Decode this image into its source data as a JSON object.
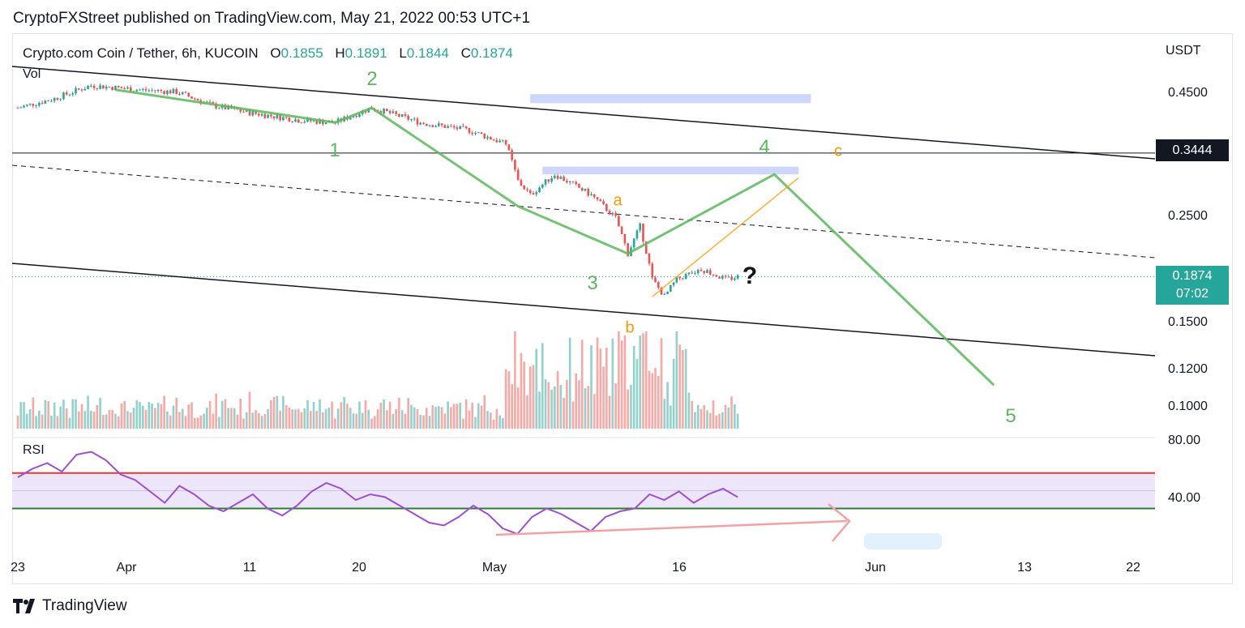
{
  "header": {
    "published": "CryptoFXStreet published on TradingView.com, May 21, 2022 00:53 UTC+1"
  },
  "legend": {
    "symbol": "Crypto.com Coin / Tether, 6h, KUCOIN",
    "open_label": "O",
    "open": "0.1855",
    "high_label": "H",
    "high": "0.1891",
    "low_label": "L",
    "low": "0.1844",
    "close_label": "C",
    "close": "0.1874",
    "volume_label": "Vol"
  },
  "rsi_label": "RSI",
  "currency": "USDT",
  "price_badge": {
    "level": "0.3444",
    "last": "0.1874",
    "countdown": "07:02"
  },
  "price_ticks": [
    "0.4500",
    "0.2500",
    "0.1500",
    "0.1200",
    "0.1000"
  ],
  "rsi_ticks": [
    "80.00",
    "40.00"
  ],
  "date_ticks": [
    "23",
    "Apr",
    "11",
    "20",
    "May",
    "16",
    "Jun",
    "13",
    "22"
  ],
  "wave_labels": {
    "green": [
      "1",
      "2",
      "3",
      "4",
      "5"
    ],
    "orange": [
      "a",
      "b",
      "c"
    ],
    "question": "?"
  },
  "footer": {
    "brand": "TradingView"
  },
  "colors": {
    "up": "#26a69a",
    "down": "#ef5350",
    "wave_green": "#5cb85c",
    "wave_orange": "#ff9800",
    "rsi_line": "#9c4fd0",
    "rsi_band": "#ede6fb",
    "rsi_upper": "#e53935",
    "rsi_lower": "#2e7d32",
    "zone": "#c5cffa",
    "arrow": "#f4a0a4"
  },
  "chart_data": {
    "type": "candlestick",
    "symbol": "Crypto.com Coin / Tether",
    "timeframe": "6h",
    "exchange": "KUCOIN",
    "scale": "log",
    "ylim": [
      0.085,
      0.58
    ],
    "x_range": [
      "2022-03-23",
      "2022-06-25"
    ],
    "last_close": 0.1874,
    "horizontal_level": 0.3444,
    "price_path": [
      [
        "2022-03-23",
        0.43
      ],
      [
        "2022-03-26",
        0.45
      ],
      [
        "2022-03-29",
        0.48
      ],
      [
        "2022-04-02",
        0.47
      ],
      [
        "2022-04-05",
        0.465
      ],
      [
        "2022-04-08",
        0.435
      ],
      [
        "2022-04-11",
        0.42
      ],
      [
        "2022-04-15",
        0.405
      ],
      [
        "2022-04-18",
        0.4
      ],
      [
        "2022-04-21",
        0.43
      ],
      [
        "2022-04-25",
        0.4
      ],
      [
        "2022-04-29",
        0.385
      ],
      [
        "2022-05-02",
        0.36
      ],
      [
        "2022-05-03",
        0.3
      ],
      [
        "2022-05-04",
        0.28
      ],
      [
        "2022-05-06",
        0.31
      ],
      [
        "2022-05-09",
        0.28
      ],
      [
        "2022-05-11",
        0.25
      ],
      [
        "2022-05-12",
        0.21
      ],
      [
        "2022-05-13",
        0.24
      ],
      [
        "2022-05-14",
        0.185
      ],
      [
        "2022-05-15",
        0.17
      ],
      [
        "2022-05-16",
        0.185
      ],
      [
        "2022-05-18",
        0.195
      ],
      [
        "2022-05-20",
        0.185
      ],
      [
        "2022-05-21",
        0.1874
      ]
    ],
    "elliott_wave_projection": [
      [
        "2022-03-31",
        0.47
      ],
      [
        "2022-04-18",
        0.4
      ],
      [
        "2022-04-21",
        0.43
      ],
      [
        "2022-05-03",
        0.265
      ],
      [
        "2022-05-12",
        0.21
      ],
      [
        "2022-05-24",
        0.31
      ],
      [
        "2022-06-11",
        0.11
      ]
    ],
    "abc_projection": [
      [
        "2022-05-14",
        0.17
      ],
      [
        "2022-05-26",
        0.305
      ]
    ],
    "supply_zones": [
      {
        "x": [
          "2022-05-04",
          "2022-05-27"
        ],
        "y": [
          0.44,
          0.46
        ]
      },
      {
        "x": [
          "2022-05-05",
          "2022-05-26"
        ],
        "y": [
          0.31,
          0.322
        ]
      }
    ],
    "rsi": {
      "ylim": [
        10,
        90
      ],
      "upper": 65,
      "lower": 40,
      "values": [
        62,
        68,
        72,
        66,
        78,
        80,
        74,
        64,
        60,
        52,
        44,
        56,
        50,
        42,
        38,
        44,
        50,
        40,
        35,
        42,
        52,
        58,
        54,
        46,
        50,
        48,
        42,
        36,
        30,
        28,
        34,
        42,
        36,
        26,
        22,
        34,
        40,
        36,
        30,
        24,
        34,
        38,
        40,
        50,
        46,
        52,
        44,
        50,
        54,
        48
      ]
    }
  }
}
